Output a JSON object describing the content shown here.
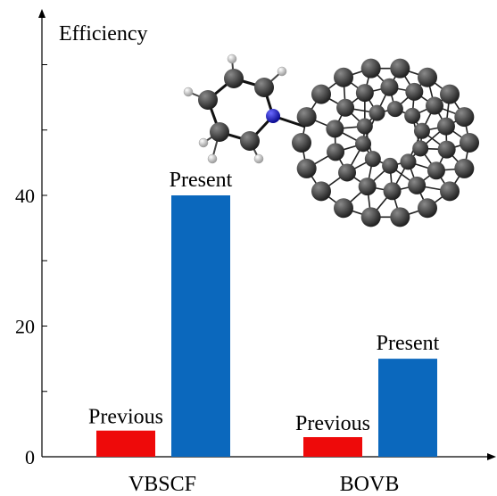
{
  "chart_data": {
    "type": "bar",
    "title": "",
    "ylabel": "Efficiency",
    "xlabel": "",
    "categories": [
      "VBSCF",
      "BOVB"
    ],
    "series": [
      {
        "name": "Previous",
        "color": "#ee0a0a",
        "values": [
          4,
          3
        ]
      },
      {
        "name": "Present",
        "color": "#0b68bd",
        "values": [
          40,
          15
        ]
      }
    ],
    "ylim": [
      0,
      67
    ],
    "yticks": [
      0,
      20,
      40
    ],
    "legend": "none",
    "grid": false,
    "inset": "molecule-illustration"
  }
}
